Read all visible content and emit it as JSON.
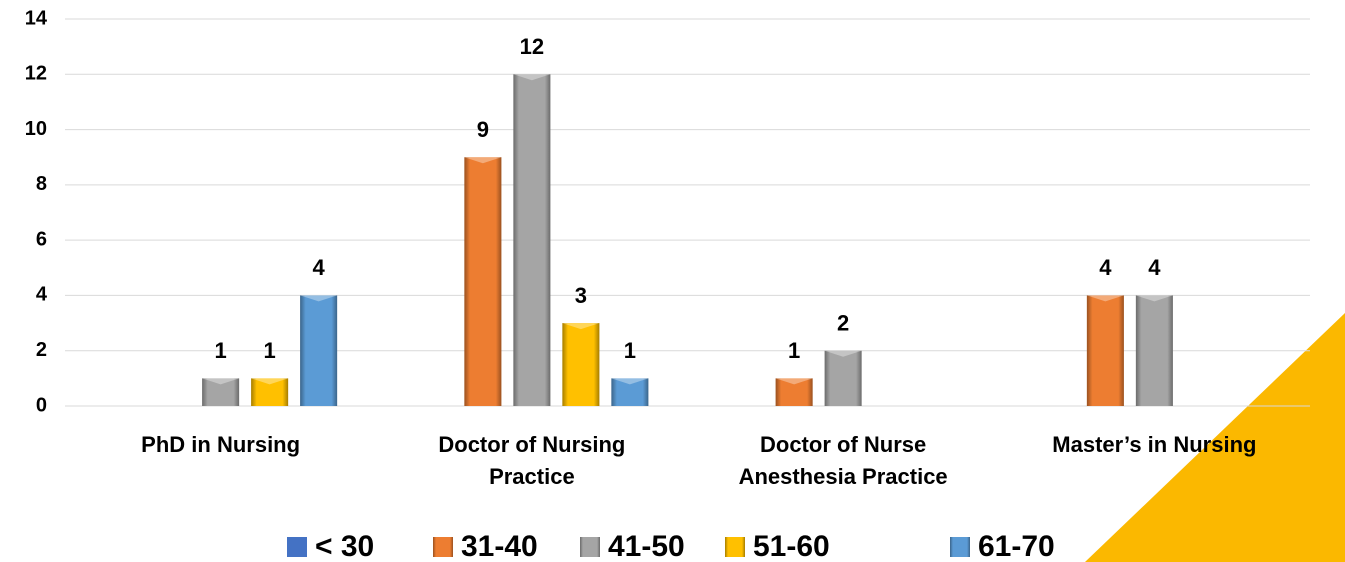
{
  "chart_data": {
    "type": "bar",
    "categories": [
      "PhD in Nursing",
      "Doctor of Nursing Practice",
      "Doctor of Nurse Anesthesia Practice",
      "Master’s in Nursing"
    ],
    "series": [
      {
        "name": "< 30",
        "color": "#4472c4",
        "values": [
          null,
          null,
          null,
          null
        ]
      },
      {
        "name": "31-40",
        "color": "#ed7d31",
        "values": [
          null,
          9,
          1,
          4
        ]
      },
      {
        "name": "41-50",
        "color": "#a5a5a5",
        "values": [
          1,
          12,
          2,
          4
        ]
      },
      {
        "name": "51-60",
        "color": "#ffc000",
        "values": [
          1,
          3,
          null,
          null
        ]
      },
      {
        "name": "61-70",
        "color": "#5b9bd5",
        "values": [
          4,
          1,
          null,
          null
        ]
      }
    ],
    "ylim": [
      0,
      14
    ],
    "yticks": [
      0,
      2,
      4,
      6,
      8,
      10,
      12,
      14
    ],
    "grid": true,
    "legend": "bottom"
  }
}
